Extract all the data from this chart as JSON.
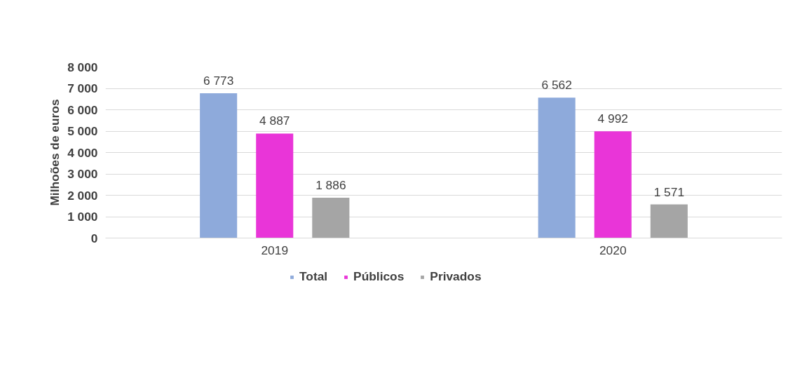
{
  "chart_data": {
    "type": "bar",
    "ylabel": "Milhoões de euros",
    "categories": [
      "2019",
      "2020"
    ],
    "series": [
      {
        "name": "Total",
        "color": "#8eaadb",
        "values": [
          6773,
          6562
        ],
        "value_labels": [
          "6 773",
          "6 562"
        ]
      },
      {
        "name": "Públicos",
        "color": "#e935d8",
        "values": [
          4887,
          4992
        ],
        "value_labels": [
          "4 887",
          "4 992"
        ]
      },
      {
        "name": "Privados",
        "color": "#a5a5a5",
        "values": [
          1886,
          1571
        ],
        "value_labels": [
          "1 886",
          "1 571"
        ]
      }
    ],
    "ylim": [
      0,
      8000
    ],
    "yticks": [
      {
        "value": 0,
        "label": "0"
      },
      {
        "value": 1000,
        "label": "1 000"
      },
      {
        "value": 2000,
        "label": "2 000"
      },
      {
        "value": 3000,
        "label": "3 000"
      },
      {
        "value": 4000,
        "label": "4 000"
      },
      {
        "value": 5000,
        "label": "5 000"
      },
      {
        "value": 6000,
        "label": "6 000"
      },
      {
        "value": 7000,
        "label": "7 000"
      },
      {
        "value": 8000,
        "label": "8 000"
      }
    ],
    "grid": "y",
    "legend": "bottom"
  }
}
